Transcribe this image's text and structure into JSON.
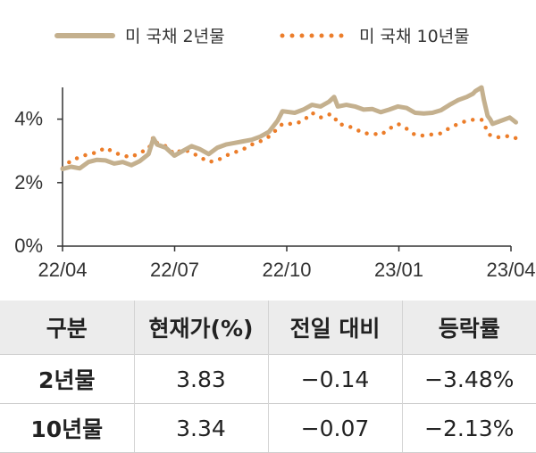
{
  "chart_data": {
    "type": "line",
    "legend_position": "top",
    "x_axis": {
      "range": [
        "2022-04",
        "2023-04"
      ],
      "ticks": [
        "22/04",
        "22/07",
        "22/10",
        "23/01",
        "23/04"
      ]
    },
    "y_axis": {
      "range": [
        0,
        5
      ],
      "ticks": [
        "0%",
        "2%",
        "4%"
      ],
      "tick_values": [
        0,
        2,
        4
      ]
    },
    "grid": false,
    "series": [
      {
        "name": "미 국채 2년물",
        "color": "#c4b08e",
        "style": "solid",
        "x": [
          "2022-04-01",
          "2022-04-08",
          "2022-04-15",
          "2022-04-22",
          "2022-04-29",
          "2022-05-06",
          "2022-05-13",
          "2022-05-20",
          "2022-05-27",
          "2022-06-03",
          "2022-06-10",
          "2022-06-14",
          "2022-06-17",
          "2022-06-24",
          "2022-07-01",
          "2022-07-08",
          "2022-07-15",
          "2022-07-22",
          "2022-07-29",
          "2022-08-05",
          "2022-08-12",
          "2022-08-19",
          "2022-08-26",
          "2022-09-02",
          "2022-09-09",
          "2022-09-16",
          "2022-09-23",
          "2022-09-27",
          "2022-10-07",
          "2022-10-14",
          "2022-10-21",
          "2022-10-28",
          "2022-11-04",
          "2022-11-08",
          "2022-11-11",
          "2022-11-18",
          "2022-11-25",
          "2022-12-02",
          "2022-12-09",
          "2022-12-16",
          "2022-12-23",
          "2022-12-30",
          "2023-01-06",
          "2023-01-13",
          "2023-01-20",
          "2023-01-27",
          "2023-02-03",
          "2023-02-10",
          "2023-02-17",
          "2023-02-24",
          "2023-03-01",
          "2023-03-03",
          "2023-03-08",
          "2023-03-10",
          "2023-03-13",
          "2023-03-15",
          "2023-03-17",
          "2023-03-24",
          "2023-03-31",
          "2023-04-05"
        ],
        "values": [
          2.43,
          2.5,
          2.45,
          2.65,
          2.72,
          2.7,
          2.6,
          2.65,
          2.55,
          2.68,
          2.9,
          3.4,
          3.2,
          3.1,
          2.85,
          3.0,
          3.15,
          3.05,
          2.9,
          3.1,
          3.2,
          3.25,
          3.3,
          3.35,
          3.45,
          3.6,
          3.95,
          4.25,
          4.2,
          4.3,
          4.45,
          4.4,
          4.55,
          4.7,
          4.4,
          4.45,
          4.4,
          4.3,
          4.32,
          4.22,
          4.3,
          4.4,
          4.35,
          4.2,
          4.18,
          4.2,
          4.28,
          4.45,
          4.6,
          4.7,
          4.8,
          4.88,
          5.0,
          4.6,
          4.1,
          4.0,
          3.85,
          3.95,
          4.05,
          3.9
        ]
      },
      {
        "name": "미 국채 10년물",
        "color": "#ec7d2a",
        "style": "dotted",
        "x": [
          "2022-04-01",
          "2022-04-08",
          "2022-04-15",
          "2022-04-22",
          "2022-04-29",
          "2022-05-06",
          "2022-05-13",
          "2022-05-20",
          "2022-05-27",
          "2022-06-03",
          "2022-06-10",
          "2022-06-14",
          "2022-06-17",
          "2022-06-24",
          "2022-07-01",
          "2022-07-08",
          "2022-07-15",
          "2022-07-22",
          "2022-07-29",
          "2022-08-05",
          "2022-08-12",
          "2022-08-19",
          "2022-08-26",
          "2022-09-02",
          "2022-09-09",
          "2022-09-16",
          "2022-09-23",
          "2022-09-27",
          "2022-10-07",
          "2022-10-14",
          "2022-10-21",
          "2022-10-28",
          "2022-11-04",
          "2022-11-08",
          "2022-11-11",
          "2022-11-18",
          "2022-11-25",
          "2022-12-02",
          "2022-12-09",
          "2022-12-16",
          "2022-12-23",
          "2022-12-30",
          "2023-01-06",
          "2023-01-13",
          "2023-01-20",
          "2023-01-27",
          "2023-02-03",
          "2023-02-10",
          "2023-02-17",
          "2023-02-24",
          "2023-03-01",
          "2023-03-03",
          "2023-03-08",
          "2023-03-10",
          "2023-03-13",
          "2023-03-15",
          "2023-03-17",
          "2023-03-24",
          "2023-03-31",
          "2023-04-05"
        ],
        "values": [
          2.45,
          2.7,
          2.8,
          2.9,
          2.95,
          3.1,
          2.95,
          2.85,
          2.8,
          2.95,
          3.05,
          3.45,
          3.25,
          3.15,
          2.9,
          3.05,
          2.95,
          2.8,
          2.65,
          2.7,
          2.85,
          2.95,
          3.05,
          3.2,
          3.3,
          3.45,
          3.7,
          3.85,
          3.85,
          3.95,
          4.2,
          4.05,
          4.15,
          4.1,
          3.85,
          3.8,
          3.7,
          3.55,
          3.55,
          3.5,
          3.7,
          3.85,
          3.7,
          3.5,
          3.48,
          3.52,
          3.55,
          3.72,
          3.85,
          3.95,
          3.98,
          3.99,
          3.98,
          3.9,
          3.55,
          3.5,
          3.45,
          3.42,
          3.48,
          3.4
        ]
      }
    ]
  },
  "table": {
    "headers": [
      "구분",
      "현재가(%)",
      "전일 대비",
      "등락률"
    ],
    "rows": [
      [
        "2년물",
        "3.83",
        "−0.14",
        "−3.48%"
      ],
      [
        "10년물",
        "3.34",
        "−0.07",
        "−2.13%"
      ]
    ]
  }
}
